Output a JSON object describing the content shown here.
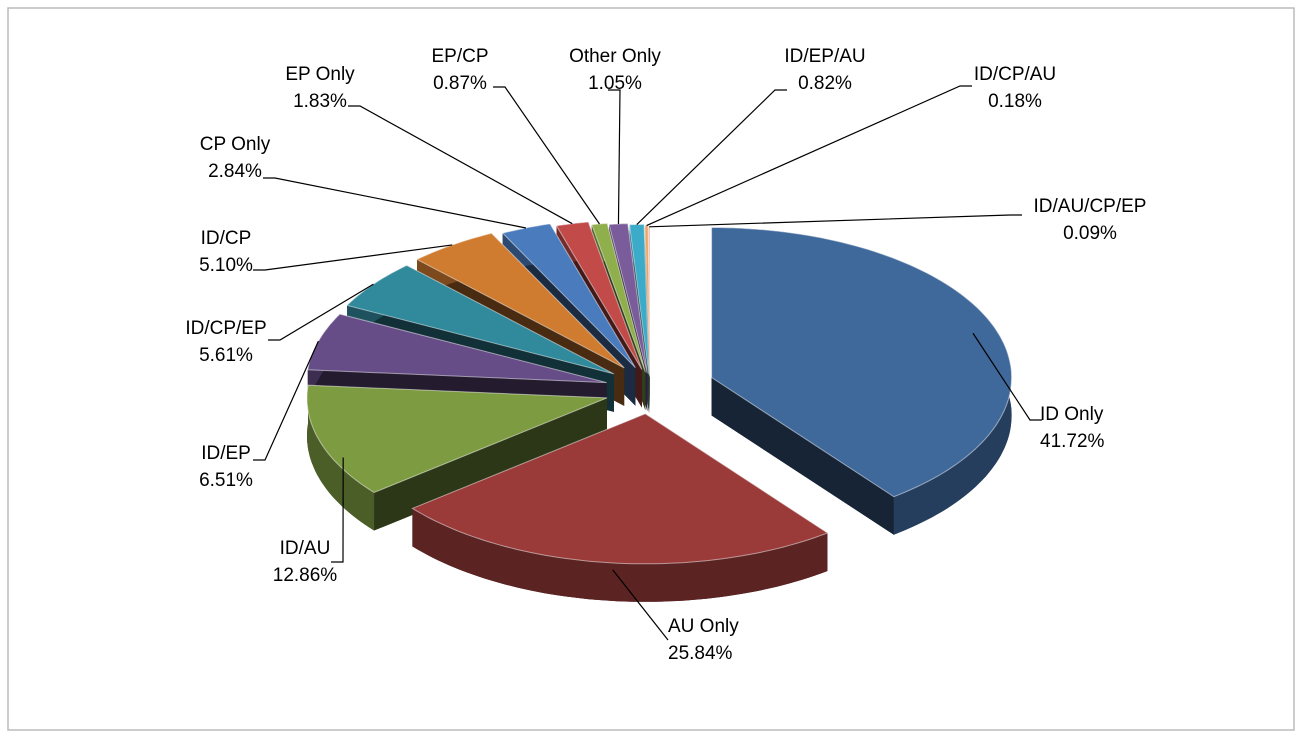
{
  "chart_data": {
    "type": "pie",
    "categories": [
      "ID Only",
      "AU Only",
      "ID/AU",
      "ID/EP",
      "ID/CP/EP",
      "ID/CP",
      "CP Only",
      "EP Only",
      "EP/CP",
      "Other Only",
      "ID/EP/AU",
      "ID/CP/AU",
      "ID/AU/CP/EP"
    ],
    "values": [
      41.72,
      25.84,
      12.86,
      6.51,
      5.61,
      5.1,
      2.84,
      1.83,
      0.87,
      1.05,
      0.82,
      0.18,
      0.09
    ],
    "value_labels": [
      "41.72%",
      "25.84%",
      "12.86%",
      "6.51%",
      "5.61%",
      "5.10%",
      "2.84%",
      "1.83%",
      "0.87%",
      "1.05%",
      "0.82%",
      "0.18%",
      "0.09%"
    ],
    "colors": [
      "#3f689b",
      "#9a3b3a",
      "#7d9c42",
      "#664d87",
      "#31899c",
      "#d07c30",
      "#4a7bbd",
      "#c24a48",
      "#8fae4c",
      "#7b5c9b",
      "#3cabc9",
      "#f0a464",
      "#e9b2a2"
    ]
  }
}
